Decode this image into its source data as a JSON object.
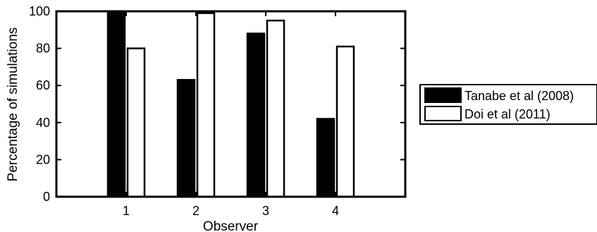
{
  "chart_data": {
    "type": "bar",
    "categories": [
      "1",
      "2",
      "3",
      "4"
    ],
    "series": [
      {
        "name": "Tanabe et al (2008)",
        "values": [
          100,
          63,
          88,
          42
        ],
        "color": "#000000"
      },
      {
        "name": "Doi et al (2011)",
        "values": [
          80,
          99,
          95,
          81
        ],
        "color": "#ffffff"
      }
    ],
    "title": "",
    "xlabel": "Observer",
    "ylabel": "Percentage of simulations",
    "ylim": [
      0,
      100
    ],
    "yticks": [
      0,
      20,
      40,
      60,
      80,
      100
    ],
    "grid": false,
    "legend_position": "outside-right"
  }
}
